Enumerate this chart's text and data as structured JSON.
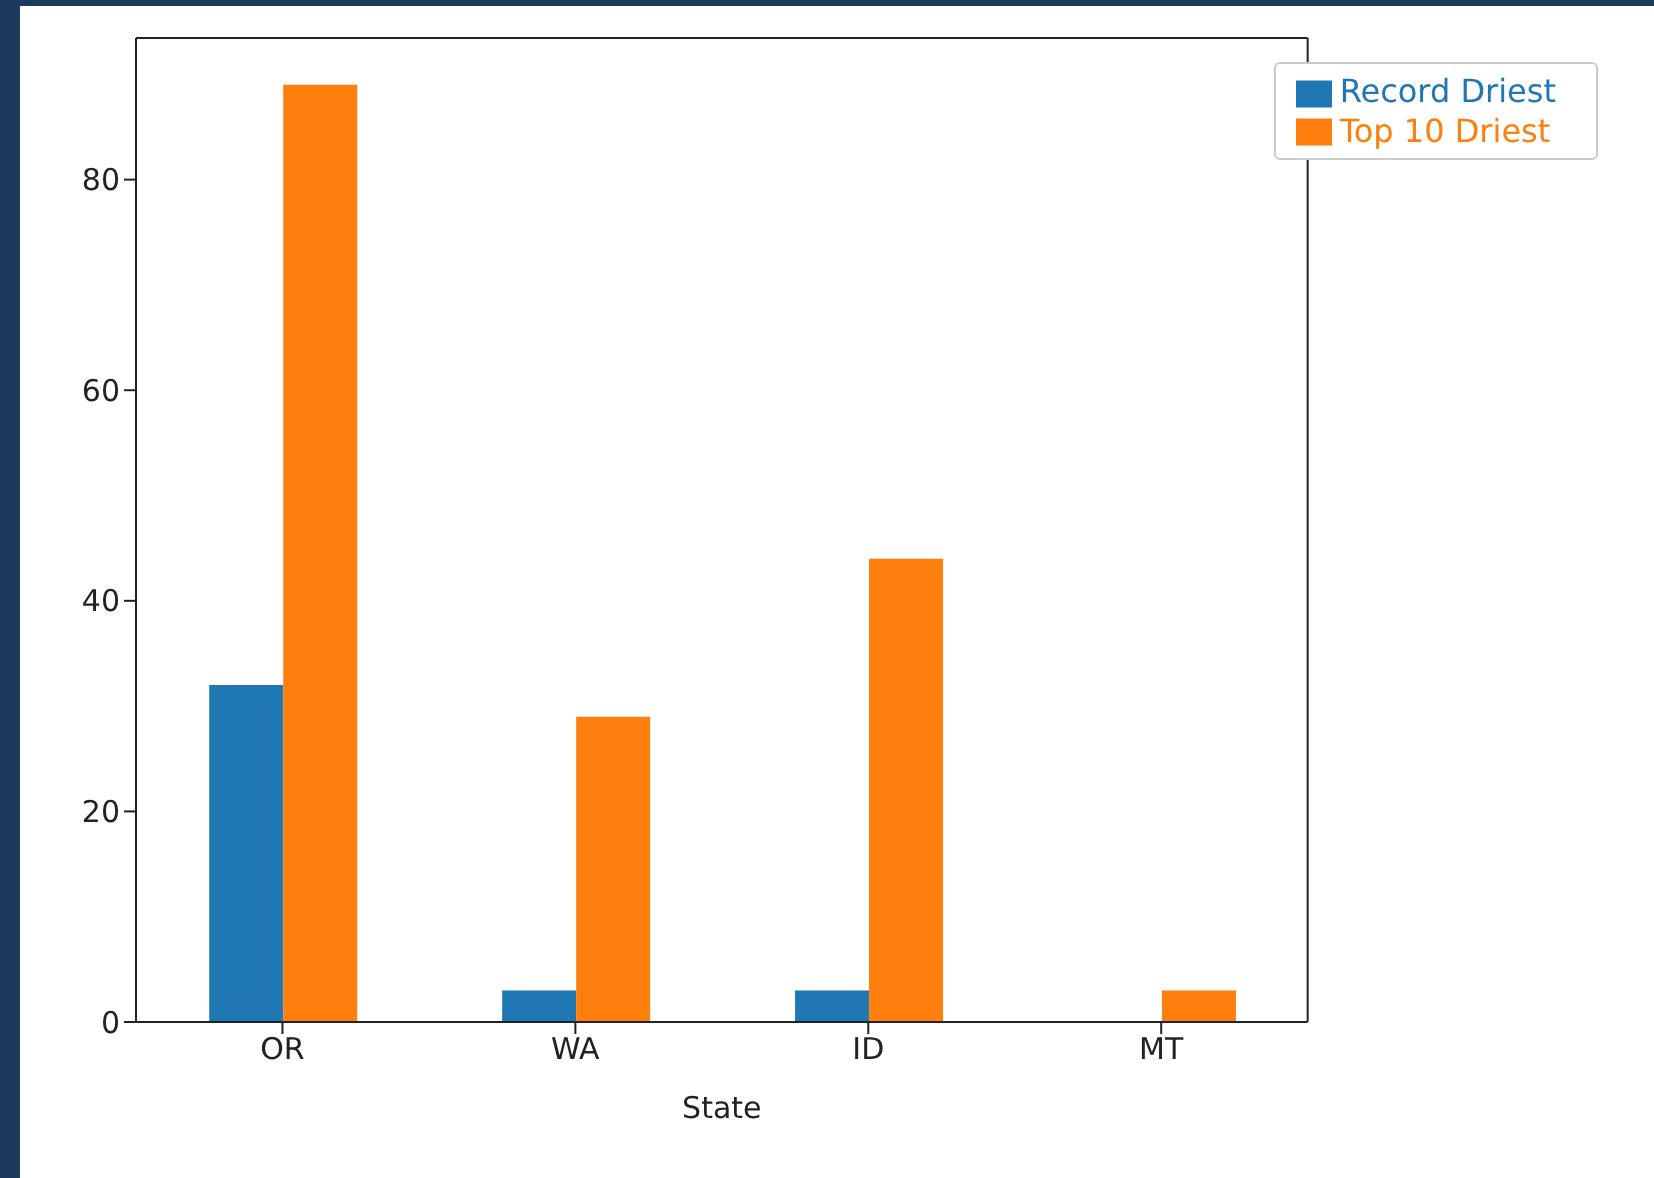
{
  "chart_data": {
    "type": "bar",
    "xlabel": "State",
    "categories": [
      "OR",
      "WA",
      "ID",
      "MT"
    ],
    "series": [
      {
        "name": "Record Driest",
        "color": "#1f77b4",
        "values": [
          32,
          3,
          3,
          0
        ]
      },
      {
        "name": "Top 10 Driest",
        "color": "#ff7f0e",
        "values": [
          89,
          29,
          44,
          3
        ]
      }
    ],
    "ylim": [
      0,
      93.45
    ],
    "yticks": [
      0,
      20,
      40,
      60,
      80
    ],
    "grid": false,
    "legend": "top right"
  }
}
